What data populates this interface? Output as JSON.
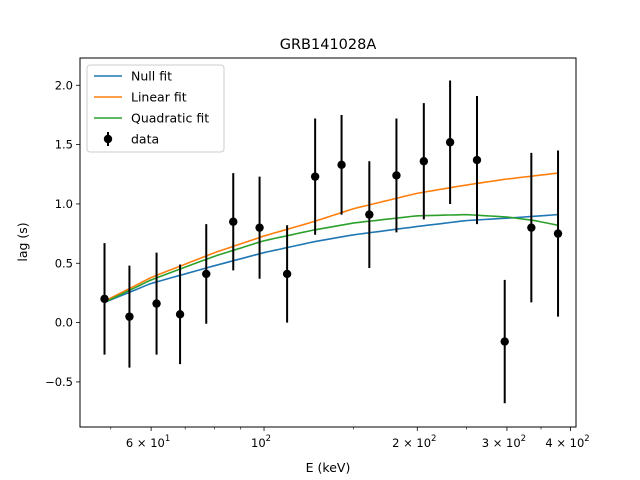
{
  "chart_data": {
    "type": "scatter",
    "title": "GRB141028A",
    "xlabel": "E (keV)",
    "ylabel": "lag (s)",
    "xscale": "log",
    "xlim": [
      43.5,
      410
    ],
    "ylim": [
      -0.88,
      2.23
    ],
    "x_ticks": [
      {
        "value": 60,
        "base": "6",
        "exp": "1"
      },
      {
        "value": 100,
        "base": "10",
        "exp": "2"
      },
      {
        "value": 200,
        "base": "2",
        "exp": "2"
      },
      {
        "value": 300,
        "base": "3",
        "exp": "2"
      },
      {
        "value": 400,
        "base": "4",
        "exp": "2"
      }
    ],
    "y_ticks": [
      {
        "value": -0.5,
        "label": "−0.5"
      },
      {
        "value": 0.0,
        "label": "0.0"
      },
      {
        "value": 0.5,
        "label": "0.5"
      },
      {
        "value": 1.0,
        "label": "1.0"
      },
      {
        "value": 1.5,
        "label": "1.5"
      },
      {
        "value": 2.0,
        "label": "2.0"
      }
    ],
    "grid": false,
    "legend_position": "top-left",
    "data_points": {
      "name": "data",
      "color": "#000000",
      "x": [
        48.6,
        54.4,
        61.5,
        68.4,
        77.0,
        87.0,
        98.0,
        111.0,
        126.0,
        142.0,
        161.0,
        182.0,
        206.0,
        232.0,
        262.0,
        297.0,
        335.0,
        378.0
      ],
      "y": [
        0.2,
        0.05,
        0.16,
        0.07,
        0.41,
        0.85,
        0.8,
        0.41,
        1.23,
        1.33,
        0.91,
        1.24,
        1.36,
        1.52,
        1.37,
        -0.16,
        0.8,
        0.75
      ],
      "err": [
        0.47,
        0.43,
        0.43,
        0.42,
        0.42,
        0.41,
        0.43,
        0.41,
        0.49,
        0.42,
        0.45,
        0.48,
        0.49,
        0.52,
        0.54,
        0.52,
        0.63,
        0.7
      ]
    },
    "fits": [
      {
        "name": "Null fit",
        "color": "#1f77b4",
        "x": [
          48.6,
          60,
          80,
          100,
          125,
          150,
          200,
          250,
          300,
          378
        ],
        "y": [
          0.17,
          0.33,
          0.48,
          0.59,
          0.68,
          0.74,
          0.81,
          0.86,
          0.88,
          0.91
        ]
      },
      {
        "name": "Linear fit",
        "color": "#ff7f0e",
        "x": [
          48.6,
          60,
          80,
          100,
          125,
          150,
          200,
          250,
          300,
          378
        ],
        "y": [
          0.18,
          0.38,
          0.59,
          0.73,
          0.85,
          0.96,
          1.09,
          1.16,
          1.21,
          1.26
        ]
      },
      {
        "name": "Quadratic fit",
        "color": "#2ca02c",
        "x": [
          48.6,
          60,
          80,
          100,
          125,
          150,
          200,
          250,
          300,
          340,
          378
        ],
        "y": [
          0.17,
          0.36,
          0.56,
          0.69,
          0.78,
          0.84,
          0.9,
          0.91,
          0.89,
          0.86,
          0.82
        ]
      }
    ]
  }
}
